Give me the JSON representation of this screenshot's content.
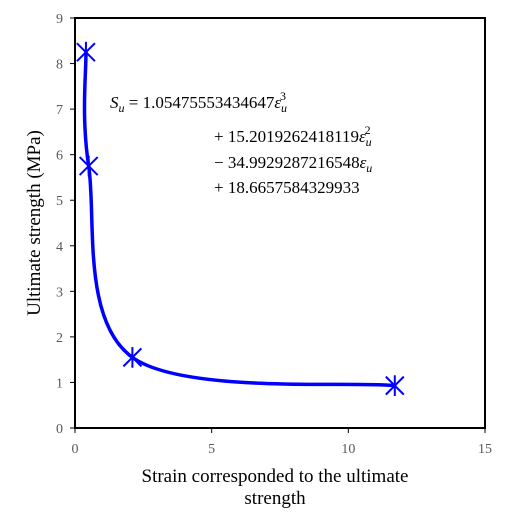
{
  "chart_data": {
    "type": "scatter",
    "title": "",
    "xlabel": "Strain corresponded to the ultimate strength",
    "xlabel_lines": [
      "Strain corresponded to the ultimate",
      "strength"
    ],
    "ylabel": "Ultimate strength (MPa)",
    "xlim": [
      0,
      15
    ],
    "ylim": [
      0,
      9
    ],
    "xticks": [
      "0",
      "5",
      "10",
      "15"
    ],
    "yticks": [
      "0",
      "1",
      "2",
      "3",
      "4",
      "5",
      "6",
      "7",
      "8",
      "9"
    ],
    "grid": false,
    "legend": "none",
    "series": [
      {
        "marker": "asterisk",
        "line": "smooth",
        "color": "#0000ff",
        "x": [
          0.4,
          0.5,
          2.1,
          11.7
        ],
        "y": [
          8.25,
          5.75,
          1.55,
          0.93
        ]
      }
    ],
    "annotations": {
      "equation_lines": [
        "S_u = 1.05475553434647ε_u^3",
        "+ 15.2019262418119ε_u^2",
        "− 34.9929287216548ε_u",
        "+ 18.6657584329933"
      ]
    }
  }
}
